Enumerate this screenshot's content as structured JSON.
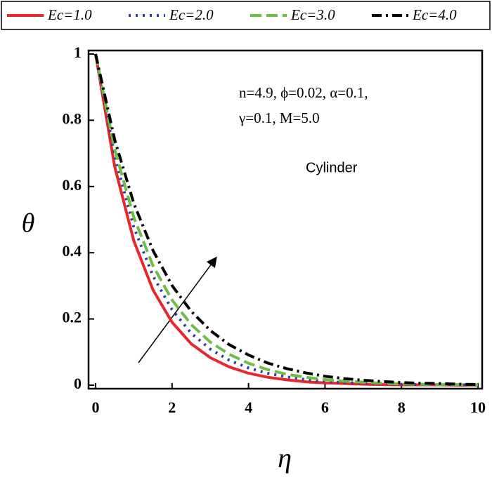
{
  "chart_data": {
    "type": "line",
    "x": [
      0,
      0.5,
      1,
      1.5,
      2,
      2.5,
      3,
      3.5,
      4,
      4.5,
      5,
      5.5,
      6,
      6.5,
      7,
      7.5,
      8,
      8.5,
      9,
      9.5,
      10
    ],
    "series": [
      {
        "name": "Ec=1.0",
        "color": "#e8262b",
        "dash": "solid",
        "values": [
          1,
          0.66,
          0.436,
          0.288,
          0.19,
          0.125,
          0.083,
          0.055,
          0.036,
          0.024,
          0.016,
          0.01,
          0.007,
          0.005,
          0.003,
          0.002,
          0.001,
          0.001,
          0.001,
          0,
          0
        ]
      },
      {
        "name": "Ec=2.0",
        "color": "#2b3fa8",
        "dash": "dot",
        "values": [
          1,
          0.691,
          0.477,
          0.33,
          0.228,
          0.157,
          0.109,
          0.075,
          0.052,
          0.036,
          0.025,
          0.017,
          0.012,
          0.008,
          0.006,
          0.004,
          0.003,
          0.002,
          0.001,
          0.001,
          0.001
        ]
      },
      {
        "name": "Ec=3.0",
        "color": "#6abf45",
        "dash": "dash",
        "values": [
          1,
          0.712,
          0.507,
          0.361,
          0.257,
          0.183,
          0.13,
          0.093,
          0.066,
          0.047,
          0.033,
          0.024,
          0.017,
          0.012,
          0.009,
          0.006,
          0.004,
          0.003,
          0.002,
          0.002,
          0.001
        ]
      },
      {
        "name": "Ec=4.0",
        "color": "#000000",
        "dash": "dashdot",
        "values": [
          1,
          0.741,
          0.549,
          0.407,
          0.301,
          0.223,
          0.165,
          0.122,
          0.091,
          0.067,
          0.05,
          0.037,
          0.027,
          0.02,
          0.015,
          0.011,
          0.008,
          0.006,
          0.005,
          0.003,
          0.002
        ]
      }
    ],
    "xlabel": "η",
    "ylabel": "θ",
    "xlim": [
      0,
      10
    ],
    "ylim": [
      0,
      1
    ],
    "xticks": [
      0,
      2,
      4,
      6,
      8,
      10
    ],
    "yticks": [
      0,
      0.2,
      0.4,
      0.6,
      0.8,
      1
    ],
    "annotations": [
      "n=4.9, ϕ=0.02, α=0.1,",
      "γ=0.1, M=5.0",
      "Cylinder"
    ]
  }
}
